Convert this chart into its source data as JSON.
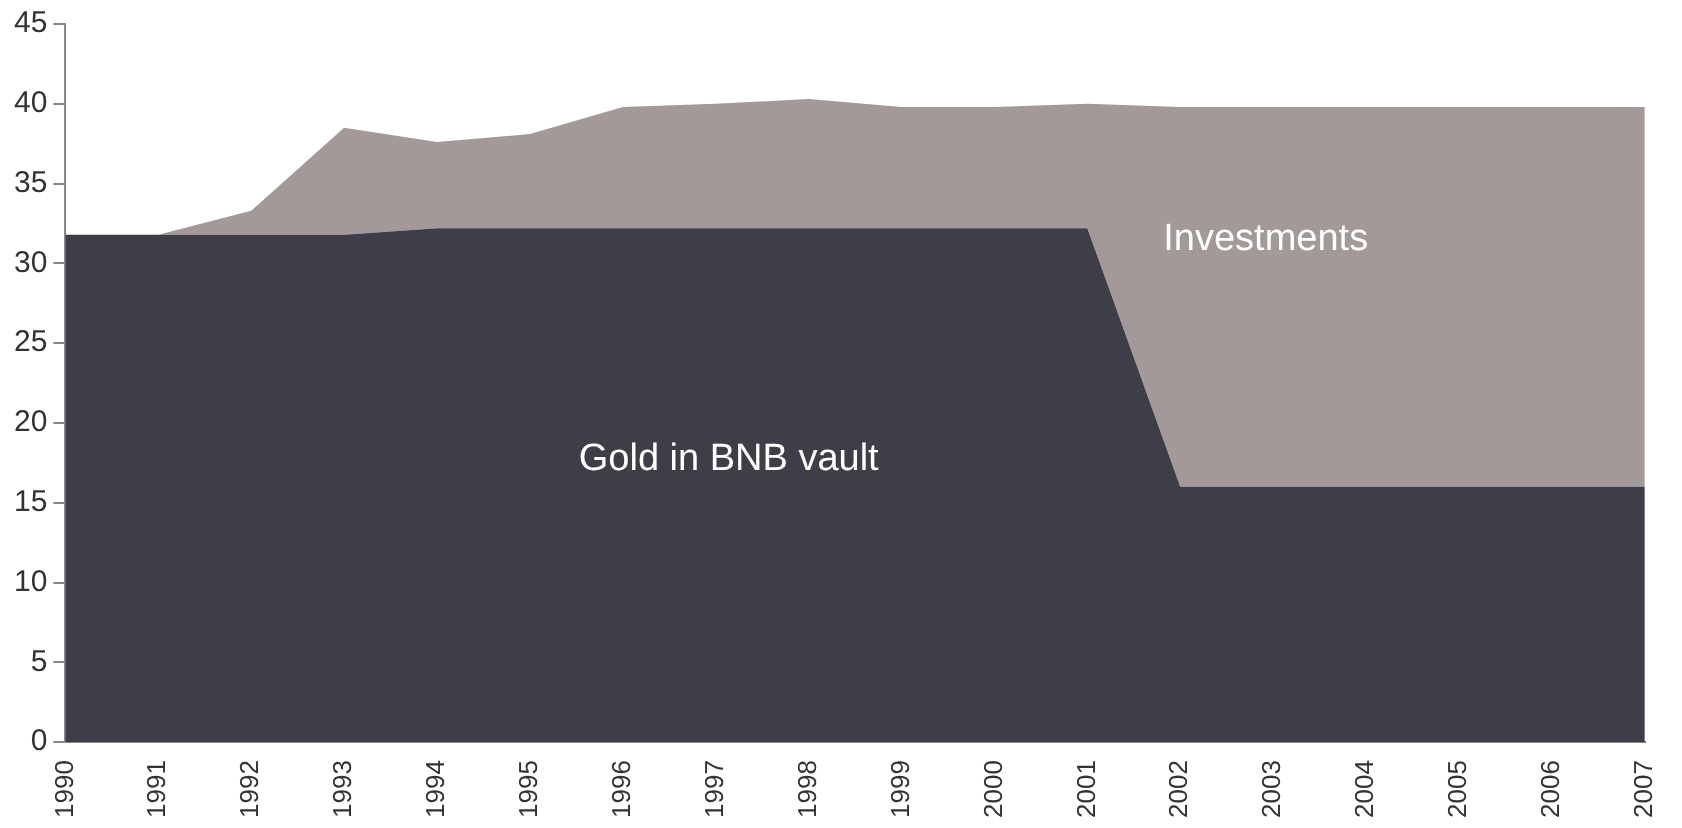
{
  "chart_data": {
    "type": "area",
    "stacked": true,
    "legend": false,
    "grid": false,
    "categories": [
      "1990",
      "1991",
      "1992",
      "1993",
      "1994",
      "1995",
      "1996",
      "1997",
      "1998",
      "1999",
      "2000",
      "2001",
      "2002",
      "2003",
      "2004",
      "2005",
      "2006",
      "2007"
    ],
    "series": [
      {
        "name": "Gold in BNB vault",
        "color": "#3f3d47",
        "values": [
          31.8,
          31.8,
          31.8,
          31.8,
          32.2,
          32.2,
          32.2,
          32.2,
          32.2,
          32.2,
          32.2,
          32.2,
          16.0,
          16.0,
          16.0,
          16.0,
          16.0,
          16.0
        ]
      },
      {
        "name": "Investments",
        "color": "#a39999",
        "values": [
          0,
          0,
          1.5,
          6.7,
          5.4,
          5.9,
          7.6,
          7.8,
          8.1,
          7.6,
          7.6,
          7.8,
          23.8,
          23.8,
          23.8,
          23.8,
          23.8,
          23.8
        ]
      }
    ],
    "ylim": [
      0,
      45
    ],
    "yticks": [
      0,
      5,
      10,
      15,
      20,
      25,
      30,
      35,
      40,
      45
    ]
  }
}
